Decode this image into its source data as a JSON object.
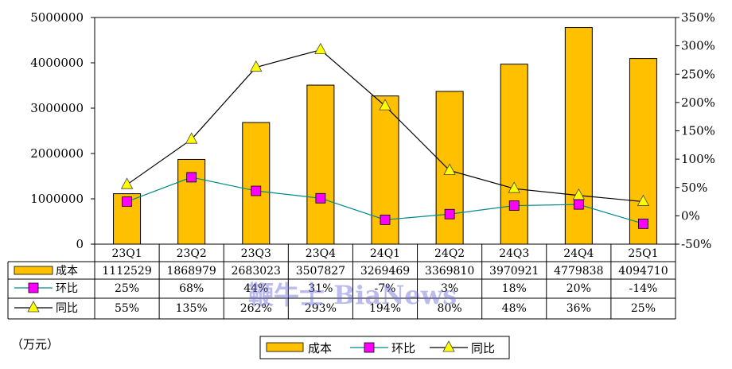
{
  "chart_data": {
    "type": "bar",
    "categories": [
      "23Q1",
      "23Q2",
      "23Q3",
      "23Q4",
      "24Q1",
      "24Q2",
      "24Q3",
      "24Q4",
      "25Q1"
    ],
    "series": [
      {
        "name": "成本",
        "kind": "bar",
        "axis": "left",
        "color": "#FFC000",
        "values": [
          1112529,
          1868979,
          2683023,
          3507827,
          3269469,
          3369810,
          3970921,
          4779838,
          4094710
        ],
        "labels": [
          "1112529",
          "1868979",
          "2683023",
          "3507827",
          "3269469",
          "3369810",
          "3970921",
          "4779838",
          "4094710"
        ]
      },
      {
        "name": "环比",
        "kind": "line",
        "axis": "right",
        "color": "#008B8B",
        "marker": "square",
        "marker_color": "#FF00FF",
        "values": [
          25,
          68,
          44,
          31,
          -7,
          3,
          18,
          20,
          -14
        ],
        "labels": [
          "25%",
          "68%",
          "44%",
          "31%",
          "-7%",
          "3%",
          "18%",
          "20%",
          "-14%"
        ]
      },
      {
        "name": "同比",
        "kind": "line",
        "axis": "right",
        "color": "#000000",
        "marker": "triangle",
        "marker_color": "#FFFF00",
        "values": [
          55,
          135,
          262,
          293,
          194,
          80,
          48,
          36,
          25
        ],
        "labels": [
          "55%",
          "135%",
          "262%",
          "293%",
          "194%",
          "80%",
          "48%",
          "36%",
          "25%"
        ]
      }
    ],
    "left_axis": {
      "min": 0,
      "max": 5000000,
      "step": 1000000,
      "tick_labels": [
        "0",
        "1000000",
        "2000000",
        "3000000",
        "4000000",
        "5000000"
      ]
    },
    "right_axis": {
      "min": -50,
      "max": 350,
      "step": 50,
      "tick_labels": [
        "-50%",
        "0%",
        "50%",
        "100%",
        "150%",
        "200%",
        "250%",
        "300%",
        "350%"
      ]
    },
    "unit_label": "（万元）",
    "watermark": "鞭牛士 BiaNews",
    "legend": [
      "成本",
      "环比",
      "同比"
    ],
    "grid": false,
    "legend_position": "bottom-center"
  }
}
